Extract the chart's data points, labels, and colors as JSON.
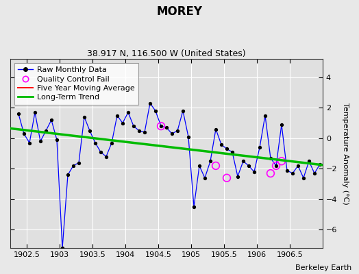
{
  "title": "MOREY",
  "subtitle": "38.917 N, 116.500 W (United States)",
  "credit": "Berkeley Earth",
  "ylabel": "Temperature Anomaly (°C)",
  "xlim": [
    1902.25,
    1907.0
  ],
  "ylim": [
    -7.2,
    5.2
  ],
  "xticks": [
    1902.5,
    1903.0,
    1903.5,
    1904.0,
    1904.5,
    1905.0,
    1905.5,
    1906.0,
    1906.5
  ],
  "xticklabels": [
    "1902.5",
    "1903",
    "1903.5",
    "1904",
    "1904.5",
    "1905",
    "1905.5",
    "1906",
    "1906.5"
  ],
  "yticks": [
    -6,
    -4,
    -2,
    0,
    2,
    4
  ],
  "fig_bg_color": "#e8e8e8",
  "plot_bg_color": "#e0e0e0",
  "raw_x": [
    1902.375,
    1902.458,
    1902.542,
    1902.625,
    1902.708,
    1902.792,
    1902.875,
    1902.958,
    1903.042,
    1903.125,
    1903.208,
    1903.292,
    1903.375,
    1903.458,
    1903.542,
    1903.625,
    1903.708,
    1903.792,
    1903.875,
    1903.958,
    1904.042,
    1904.125,
    1904.208,
    1904.292,
    1904.375,
    1904.458,
    1904.542,
    1904.625,
    1904.708,
    1904.792,
    1904.875,
    1904.958,
    1905.042,
    1905.125,
    1905.208,
    1905.292,
    1905.375,
    1905.458,
    1905.542,
    1905.625,
    1905.708,
    1905.792,
    1905.875,
    1905.958,
    1906.042,
    1906.125,
    1906.208,
    1906.292,
    1906.375,
    1906.458,
    1906.542,
    1906.625,
    1906.708,
    1906.792,
    1906.875,
    1906.958
  ],
  "raw_y": [
    1.6,
    0.3,
    -0.3,
    1.7,
    -0.2,
    0.5,
    1.2,
    -0.1,
    -7.2,
    -2.4,
    -1.8,
    -1.6,
    1.4,
    0.5,
    -0.3,
    -0.9,
    -1.2,
    -0.3,
    1.5,
    1.0,
    1.7,
    0.8,
    0.5,
    0.4,
    2.3,
    1.8,
    0.8,
    0.7,
    0.3,
    0.5,
    1.8,
    0.1,
    -4.5,
    -1.8,
    -2.6,
    -1.5,
    0.6,
    -0.4,
    -0.7,
    -0.9,
    -2.5,
    -1.5,
    -1.8,
    -2.2,
    -0.6,
    1.5,
    -1.3,
    -1.8,
    0.9,
    -2.1,
    -2.3,
    -1.8,
    -2.6,
    -1.5,
    -2.3,
    -1.7
  ],
  "qc_fail_x": [
    1904.542,
    1905.375,
    1905.542,
    1906.208,
    1906.292,
    1906.375
  ],
  "qc_fail_y": [
    0.8,
    -1.8,
    -2.6,
    -2.3,
    -1.8,
    -1.5
  ],
  "trend_x": [
    1902.25,
    1907.0
  ],
  "trend_y": [
    0.65,
    -1.75
  ],
  "raw_color": "#0000ff",
  "raw_marker_color": "#000000",
  "qc_color": "#ff00ff",
  "trend_color": "#00bb00",
  "moving_avg_color": "#ff0000",
  "grid_color": "#ffffff",
  "legend_bg": "#ffffff",
  "title_fontsize": 12,
  "subtitle_fontsize": 9,
  "label_fontsize": 8,
  "tick_fontsize": 8,
  "credit_fontsize": 8
}
